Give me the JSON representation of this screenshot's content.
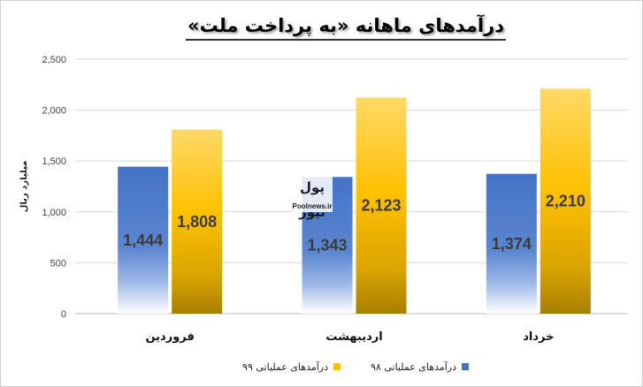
{
  "chart_data": {
    "type": "bar",
    "title": "درآمدهای ماهانه «به پرداخت ملت»",
    "ylabel": "میلیارد ریال",
    "xlabel": "",
    "categories": [
      "فروردین",
      "اردیبهشت",
      "خرداد"
    ],
    "series": [
      {
        "name": "درآمدهای عملیاتی ۹۸",
        "values": [
          1444,
          1343,
          1374
        ],
        "labels": [
          "1,444",
          "1,343",
          "1,374"
        ],
        "color": "#4472c4"
      },
      {
        "name": "درآمدهای عملیاتی ۹۹",
        "values": [
          1808,
          2123,
          2210
        ],
        "labels": [
          "1,808",
          "2,123",
          "2,210"
        ],
        "color": "#ffc000"
      }
    ],
    "ylim": [
      0,
      2500
    ],
    "yticks": [
      0,
      500,
      1000,
      1500,
      2000,
      2500
    ],
    "ytick_labels": [
      "0",
      "500",
      "1,000",
      "1,500",
      "2,000",
      "2,500"
    ],
    "grid": true,
    "legend_position": "bottom"
  },
  "watermark": {
    "logo_text": "پول نیوز",
    "site_text": "Poolnews.ir"
  }
}
